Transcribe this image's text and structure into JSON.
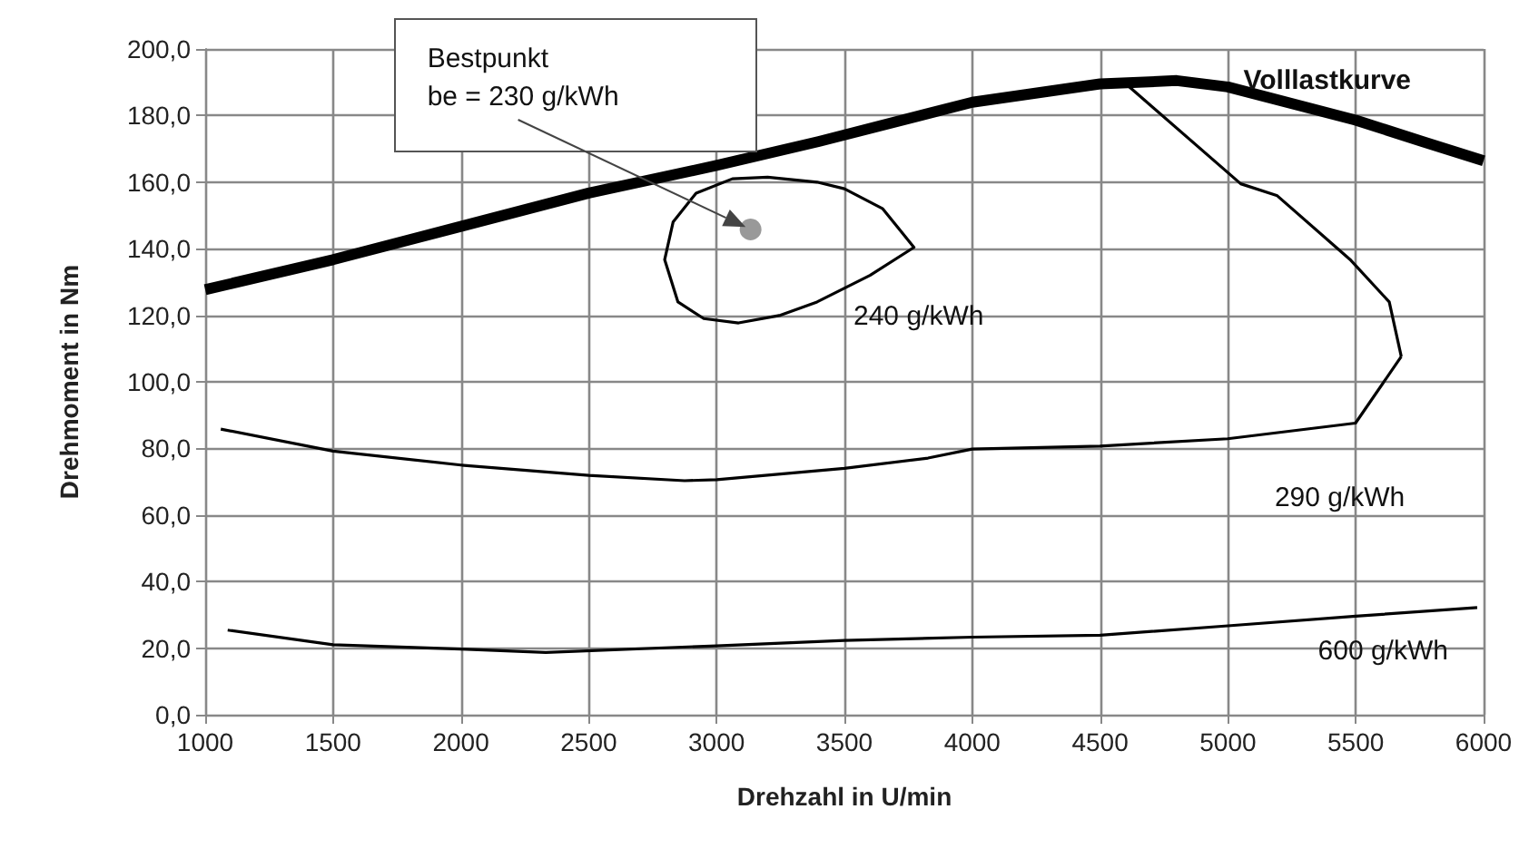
{
  "chart_data": {
    "type": "line",
    "xlabel": "Drehzahl in U/min",
    "ylabel": "Drehmoment in Nm",
    "xlim": [
      1000,
      6000
    ],
    "xticks": [
      1000,
      1500,
      2000,
      2500,
      3000,
      3500,
      4000,
      4500,
      5000,
      5500,
      6000
    ],
    "ylim": [
      0,
      200
    ],
    "yticks": [
      {
        "value": 0,
        "label": "0,0"
      },
      {
        "value": 20,
        "label": "20,0"
      },
      {
        "value": 40,
        "label": "40,0"
      },
      {
        "value": 60,
        "label": "60,0"
      },
      {
        "value": 80,
        "label": "80,0"
      },
      {
        "value": 100,
        "label": "100,0"
      },
      {
        "value": 120,
        "label": "120,0"
      },
      {
        "value": 140,
        "label": "140,0"
      },
      {
        "value": 160,
        "label": "160,0"
      },
      {
        "value": 180,
        "label": "180,0"
      },
      {
        "value": 200,
        "label": "200,0"
      }
    ],
    "grid": true,
    "marker": "none",
    "series": [
      {
        "name": "Volllastkurve",
        "color": "#000000",
        "x": [
          1000,
          1500,
          2000,
          2500,
          3000,
          3400,
          4000,
          4500,
          4800,
          5000,
          5500,
          5760,
          6000
        ],
        "values": [
          127.7,
          136.7,
          146.7,
          156.7,
          165,
          172.2,
          184,
          189.5,
          190.5,
          188.6,
          178.6,
          172.2,
          166.4
        ]
      },
      {
        "name": "290 g/kWh",
        "color": "#000000",
        "x": [
          1061,
          1500,
          2000,
          2500,
          2875,
          3001,
          3500,
          3827,
          4000,
          4500,
          4999,
          5499,
          5662,
          5678
        ],
        "values": [
          85.8,
          79.2,
          75,
          71.9,
          70.3,
          70.6,
          74,
          77.1,
          79.8,
          80.7,
          82.9,
          87.6,
          105.8,
          107.6
        ]
      },
      {
        "color": "#000000",
        "x": [
          4601,
          5050,
          5193,
          5477,
          5631,
          5678
        ],
        "values": [
          189.5,
          159.5,
          155.9,
          136.8,
          124,
          107.6
        ]
      },
      {
        "name": "600 g/kWh",
        "color": "#000000",
        "x": [
          1088,
          1500,
          2000,
          2332,
          3000,
          3500,
          4000,
          4500,
          5000,
          5500,
          5975
        ],
        "values": [
          25.4,
          21,
          19.7,
          18.7,
          20.7,
          22.3,
          23.3,
          23.9,
          26.7,
          29.6,
          32.2
        ]
      },
      {
        "type": "scatter",
        "marker": "circle",
        "color": "#7f7f7f",
        "x": [
          3133
        ],
        "values": [
          145.8
        ]
      }
    ],
    "annotations": [
      "Bestpunkt\nbe = 230 g/kWh",
      "240 g/kWh"
    ]
  }
}
